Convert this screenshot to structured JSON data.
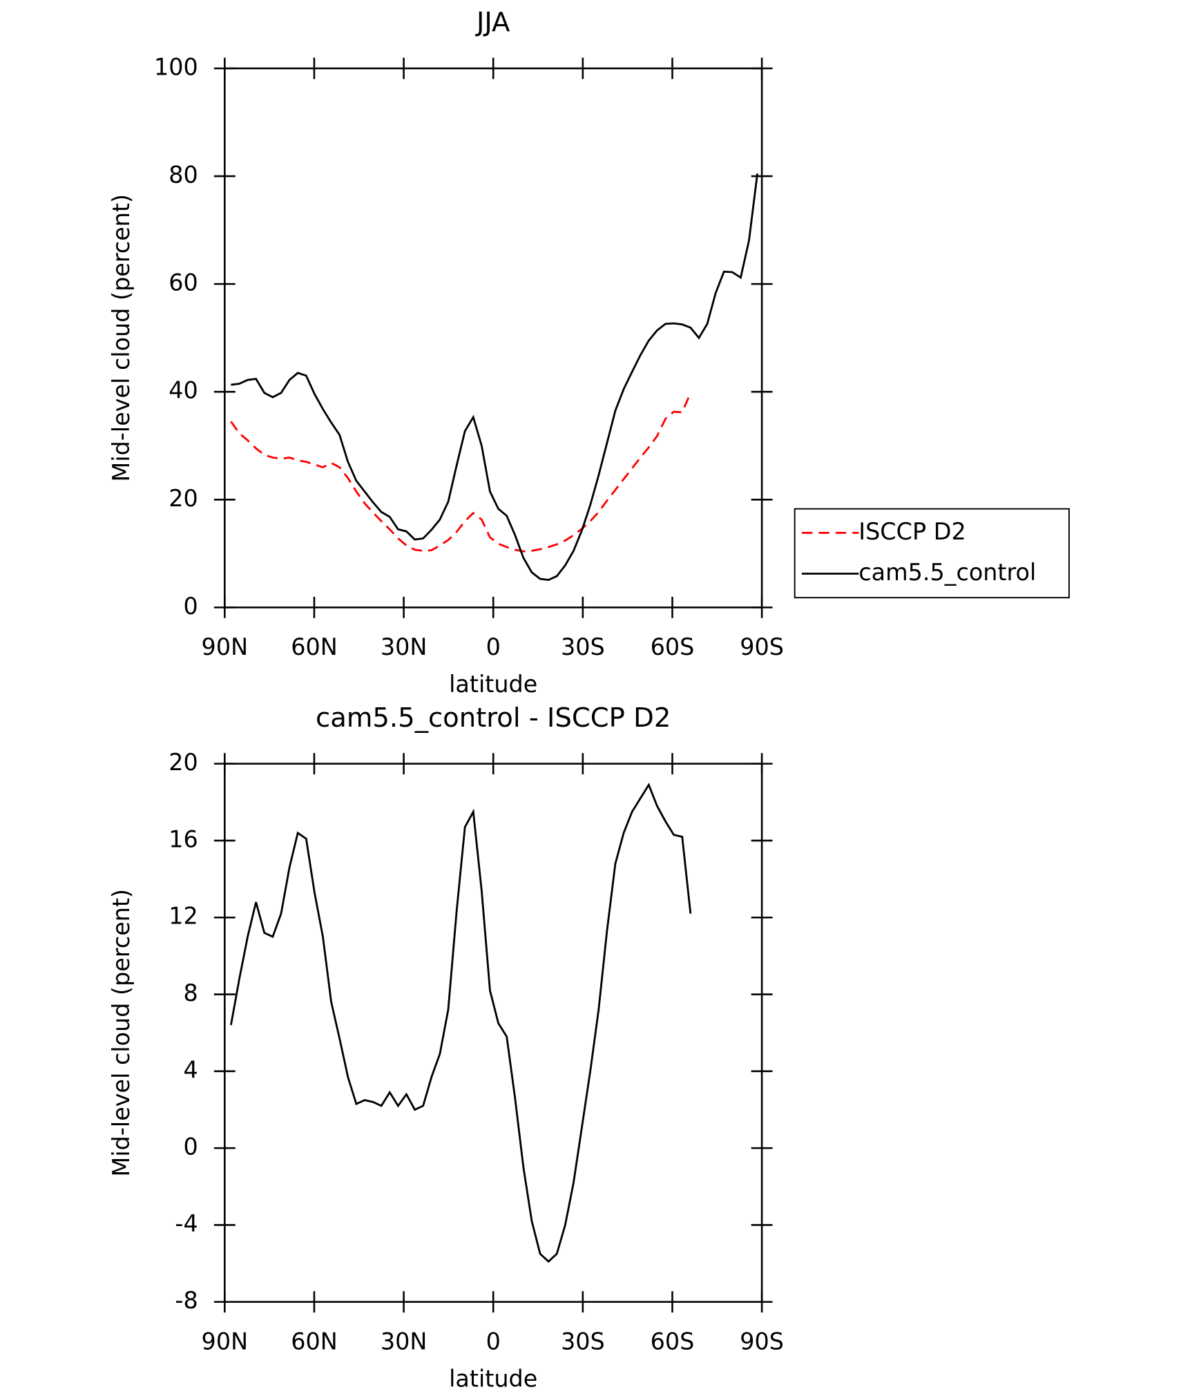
{
  "chart_data": [
    {
      "type": "line",
      "title": "JJA",
      "xlabel": "latitude",
      "ylabel": "Mid-level cloud (percent)",
      "x": [
        87.9,
        85.1,
        82.3,
        79.5,
        76.7,
        73.9,
        71.1,
        68.3,
        65.5,
        62.7,
        59.9,
        57.1,
        54.3,
        51.5,
        48.7,
        45.9,
        43.1,
        40.3,
        37.5,
        34.7,
        31.9,
        29.1,
        26.3,
        23.5,
        20.7,
        17.9,
        15.1,
        12.3,
        9.5,
        6.7,
        3.9,
        1.1,
        -1.7,
        -4.5,
        -7.3,
        -10.1,
        -12.9,
        -15.7,
        -18.5,
        -21.3,
        -24.1,
        -26.9,
        -29.7,
        -32.5,
        -35.3,
        -38.1,
        -40.9,
        -43.7,
        -46.5,
        -49.3,
        -52.1,
        -54.9,
        -57.7,
        -60.5,
        -63.3,
        -66.1,
        -68.9,
        -71.7,
        -74.5,
        -77.3,
        -80.1,
        -82.9,
        -85.7,
        -88.5
      ],
      "series": [
        {
          "name": "ISCCP D2",
          "color": "#ff0000",
          "dashed": true,
          "values": [
            34.5,
            32.3,
            31,
            29.5,
            28.3,
            27.8,
            27.6,
            27.8,
            27.3,
            27,
            26.5,
            26,
            26.8,
            26,
            24,
            21.5,
            19.3,
            17.6,
            16,
            14.5,
            12.8,
            11.5,
            10.7,
            10.5,
            10.6,
            11.5,
            12.5,
            14,
            16,
            17.5,
            16.3,
            13,
            11.8,
            11.2,
            10.7,
            10.4,
            10.5,
            10.8,
            11.2,
            11.7,
            12.4,
            13.4,
            14.6,
            16,
            17.7,
            19.8,
            21.8,
            23.8,
            25.8,
            27.8,
            29.7,
            31.8,
            35,
            36.3,
            36.2,
            39.8,
            null,
            null,
            null,
            null,
            null,
            null,
            null,
            null
          ]
        },
        {
          "name": "cam5.5_control",
          "color": "#000000",
          "dashed": false,
          "values": [
            41.3,
            41.5,
            42.2,
            42.4,
            39.8,
            39,
            39.8,
            42.2,
            43.5,
            43,
            39.6,
            36.8,
            34.3,
            32,
            27,
            23.5,
            21.5,
            19.5,
            17.7,
            16.8,
            14.5,
            14.1,
            12.6,
            12.8,
            14.4,
            16.3,
            19.6,
            26.3,
            32.7,
            35.3,
            30,
            21.5,
            18.3,
            17,
            13.4,
            9.2,
            6.5,
            5.3,
            5.1,
            5.8,
            7.8,
            10.5,
            14.3,
            19,
            24.5,
            30.5,
            36.5,
            40.5,
            43.7,
            46.8,
            49.5,
            51.4,
            52.6,
            52.7,
            52.5,
            51.9,
            50,
            52.6,
            58.3,
            62.3,
            62.2,
            61.2,
            68.1,
            80.5
          ]
        }
      ],
      "xlim": [
        90,
        -90
      ],
      "xticks": [
        {
          "value": 90,
          "label": "90N"
        },
        {
          "value": 60,
          "label": "60N"
        },
        {
          "value": 30,
          "label": "30N"
        },
        0,
        {
          "value": -30,
          "label": "30S"
        },
        {
          "value": -60,
          "label": "60S"
        },
        {
          "value": -90,
          "label": "90S"
        }
      ],
      "ylim": [
        0,
        100
      ],
      "yticks": [
        0,
        20,
        40,
        60,
        80,
        100
      ],
      "legend": "right"
    },
    {
      "type": "line",
      "title": "cam5.5_control - ISCCP D2",
      "xlabel": "latitude",
      "ylabel": "Mid-level cloud (percent)",
      "x": [
        87.9,
        85.1,
        82.3,
        79.5,
        76.7,
        73.9,
        71.1,
        68.3,
        65.5,
        62.7,
        59.9,
        57.1,
        54.3,
        51.5,
        48.7,
        45.9,
        43.1,
        40.3,
        37.5,
        34.7,
        31.9,
        29.1,
        26.3,
        23.5,
        20.7,
        17.9,
        15.1,
        12.3,
        9.5,
        6.7,
        3.9,
        1.1,
        -1.7,
        -4.5,
        -7.3,
        -10.1,
        -12.9,
        -15.7,
        -18.5,
        -21.3,
        -24.1,
        -26.9,
        -29.7,
        -32.5,
        -35.3,
        -38.1,
        -40.9,
        -43.7,
        -46.5,
        -49.3,
        -52.1,
        -54.9,
        -57.7,
        -60.5,
        -63.3,
        -66.1,
        -68.9,
        -71.7,
        -74.5,
        -77.3,
        -80.1,
        -82.9,
        -85.7,
        -88.5
      ],
      "series": [
        {
          "color": "#000000",
          "dashed": false,
          "values": [
            6.4,
            8.8,
            11,
            12.8,
            11.2,
            11,
            12.2,
            14.6,
            16.4,
            16.1,
            13.3,
            11,
            7.6,
            5.7,
            3.7,
            2.3,
            2.5,
            2.4,
            2.2,
            2.9,
            2.2,
            2.8,
            2,
            2.2,
            3.7,
            4.9,
            7.2,
            12.3,
            16.7,
            17.5,
            13.4,
            8.2,
            6.5,
            5.8,
            2.6,
            -1,
            -3.8,
            -5.5,
            -5.9,
            -5.5,
            -4,
            -1.8,
            1.1,
            4,
            7.2,
            11.3,
            14.8,
            16.4,
            17.5,
            18.2,
            18.9,
            17.8,
            17,
            16.3,
            16.2,
            12.2,
            null,
            null,
            null,
            null,
            null,
            null,
            null,
            null
          ]
        }
      ],
      "xlim": [
        90,
        -90
      ],
      "xticks": [
        {
          "value": 90,
          "label": "90N"
        },
        {
          "value": 60,
          "label": "60N"
        },
        {
          "value": 30,
          "label": "30N"
        },
        0,
        {
          "value": -30,
          "label": "30S"
        },
        {
          "value": -60,
          "label": "60S"
        },
        {
          "value": -90,
          "label": "90S"
        }
      ],
      "ylim": [
        -8,
        20
      ],
      "yticks": [
        -8,
        -4,
        0,
        4,
        8,
        12,
        16,
        20
      ]
    }
  ]
}
